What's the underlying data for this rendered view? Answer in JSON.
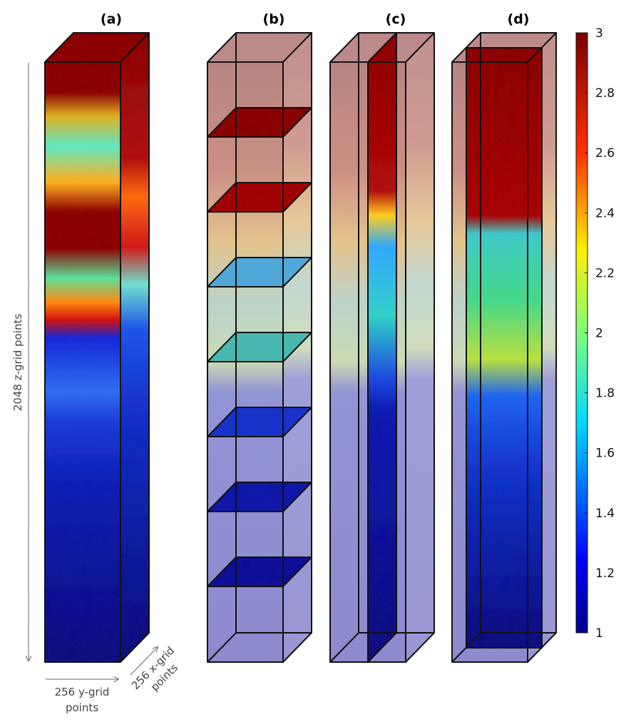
{
  "panels": [
    {
      "label": "(a)",
      "mode": "full"
    },
    {
      "label": "(b)",
      "mode": "slices"
    },
    {
      "label": "(c)",
      "mode": "vertical-slice"
    },
    {
      "label": "(d)",
      "mode": "mid-slice"
    }
  ],
  "axes": {
    "z_label": "2048 z-grid points",
    "y_label_line1": "256 y-grid",
    "y_label_line2": "points",
    "x_label_line1": "256 x-grid",
    "x_label_line2": "points"
  },
  "colorbar": {
    "min": 1,
    "max": 3,
    "colormap": "jet",
    "ticks": [
      "3",
      "2.8",
      "2.6",
      "2.4",
      "2.2",
      "2",
      "1.8",
      "1.6",
      "1.4",
      "1.2",
      "1"
    ]
  },
  "colors": {
    "panel_label": "#a8323c",
    "dark_red": "#8b0000",
    "dark_blue": "#0a0a8c",
    "transparent_top": "#b57e7c",
    "transparent_bottom": "#8a87cc"
  }
}
